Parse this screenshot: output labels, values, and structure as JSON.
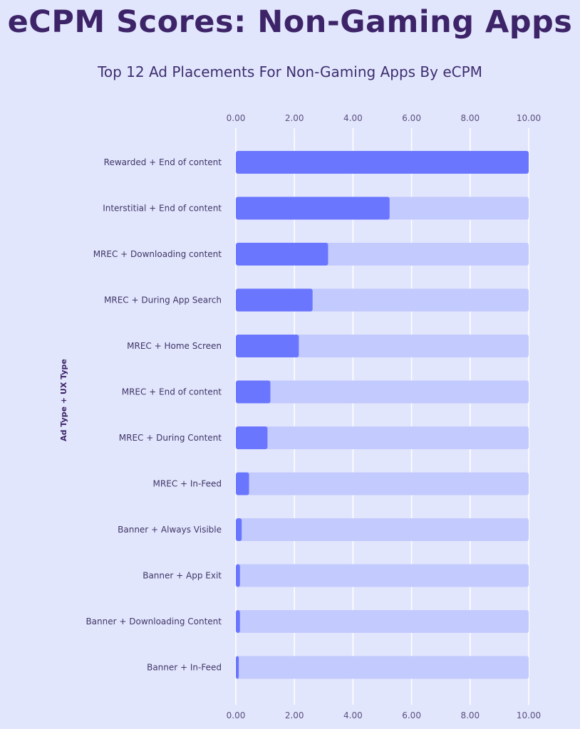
{
  "header": {
    "title": "eCPM Scores: Non-Gaming Apps",
    "subtitle": "Top 12 Ad Placements For Non-Gaming Apps By eCPM"
  },
  "colors": {
    "background": "#e2e6fd",
    "bar_fill": "#6b76ff",
    "bar_track": "#c3cafd",
    "gridline": "#ffffff",
    "title": "#3d2468"
  },
  "chart_data": {
    "type": "bar",
    "orientation": "horizontal",
    "title": "Top 12 Ad Placements For Non-Gaming Apps By eCPM",
    "xlabel": "",
    "ylabel": "Ad Type + UX Type",
    "xlim": [
      0,
      10
    ],
    "x_ticks": [
      "0.00",
      "2.00",
      "4.00",
      "6.00",
      "8.00",
      "10.00"
    ],
    "tick_positions": "top-and-bottom",
    "grid": true,
    "categories": [
      "Rewarded + End of content",
      "Interstitial + End of content",
      "MREC + Downloading content",
      "MREC + During App Search",
      "MREC + Home Screen",
      "MREC + End of content",
      "MREC + During Content",
      "MREC + In-Feed",
      "Banner + Always Visible",
      "Banner + App Exit",
      "Banner + Downloading Content",
      "Banner + In-Feed"
    ],
    "values": [
      10.0,
      5.25,
      3.15,
      2.62,
      2.15,
      1.18,
      1.08,
      0.45,
      0.2,
      0.14,
      0.14,
      0.1
    ]
  }
}
